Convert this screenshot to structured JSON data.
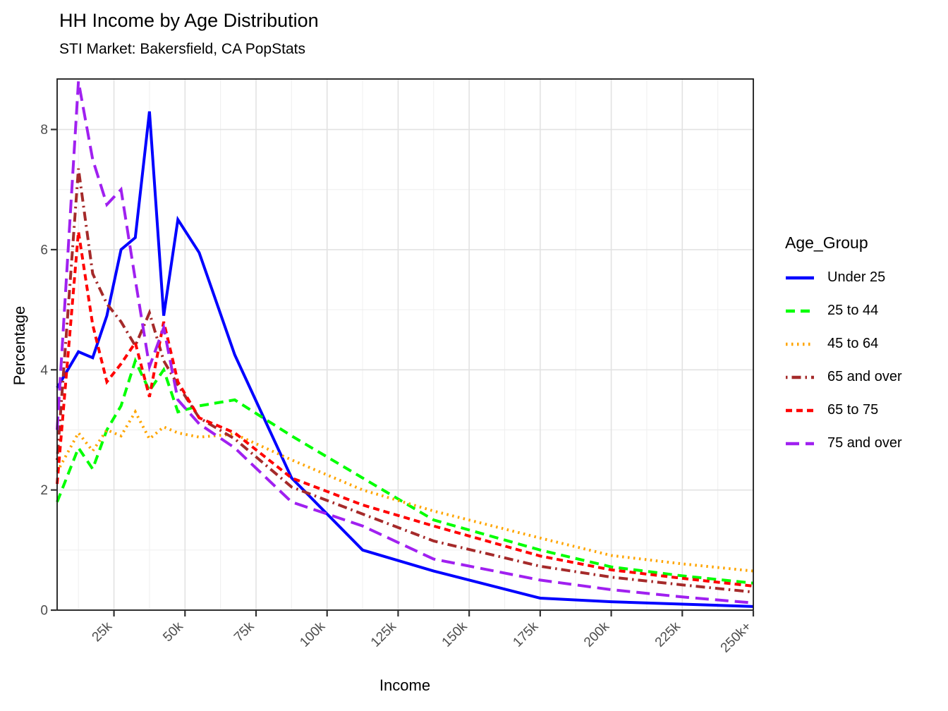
{
  "title": "HH Income by Age Distribution",
  "subtitle": "STI Market: Bakersfield, CA PopStats",
  "axes": {
    "x_label": "Income",
    "y_label": "Percentage",
    "x_tick_labels": [
      "25k",
      "50k",
      "75k",
      "100k",
      "125k",
      "150k",
      "175k",
      "200k",
      "225k",
      "250k+"
    ],
    "x_tick_values": [
      25,
      50,
      75,
      100,
      125,
      150,
      175,
      200,
      225,
      250
    ],
    "y_tick_labels": [
      "0",
      "2",
      "4",
      "6",
      "8"
    ],
    "y_tick_values": [
      0,
      2,
      4,
      6,
      8
    ]
  },
  "legend": {
    "title": "Age_Group",
    "position": "right"
  },
  "style": {
    "background": "#FFFFFF",
    "grid_major": "#E2E2E2",
    "grid_minor": "#F0F0F0",
    "panel_border": "#1A1A1A",
    "tick_mark_color": "#333333",
    "tick_label_color": "#4D4D4D",
    "text_color": "#000000"
  },
  "chart_data": {
    "type": "line",
    "title": "HH Income by Age Distribution",
    "subtitle": "STI Market: Bakersfield, CA PopStats",
    "xlabel": "Income",
    "ylabel": "Percentage",
    "x_unit": "household income, thousands of dollars (bracket midpoints)",
    "xlim": [
      5,
      250
    ],
    "ylim": [
      0,
      8.84
    ],
    "grid": true,
    "legend_position": "right",
    "x": [
      5,
      12.5,
      17.5,
      22.5,
      27.5,
      32.5,
      37.5,
      42.5,
      47.5,
      55,
      67.5,
      87.5,
      112.5,
      137.5,
      175,
      200,
      225,
      250
    ],
    "series": [
      {
        "name": "Under 25",
        "color": "#0000FF",
        "linetype": "solid",
        "values": [
          3.7,
          4.3,
          4.2,
          4.9,
          6.0,
          6.2,
          8.3,
          4.9,
          6.5,
          5.95,
          4.25,
          2.2,
          1.0,
          0.65,
          0.2,
          0.14,
          0.1,
          0.06
        ]
      },
      {
        "name": "25 to 44",
        "color": "#00FF00",
        "linetype": "dashed",
        "values": [
          1.8,
          2.7,
          2.35,
          3.0,
          3.4,
          4.15,
          3.65,
          4.0,
          3.3,
          3.4,
          3.5,
          2.9,
          2.2,
          1.5,
          1.0,
          0.72,
          0.57,
          0.45
        ]
      },
      {
        "name": "45 to 64",
        "color": "#FFA500",
        "linetype": "dotted",
        "values": [
          2.3,
          2.95,
          2.65,
          3.0,
          2.9,
          3.3,
          2.85,
          3.05,
          2.95,
          2.88,
          2.93,
          2.5,
          2.0,
          1.65,
          1.2,
          0.91,
          0.77,
          0.65
        ]
      },
      {
        "name": "65 and over",
        "color": "#A52A2A",
        "linetype": "dotdash",
        "values": [
          2.5,
          7.35,
          5.6,
          5.1,
          4.8,
          4.4,
          4.95,
          4.15,
          3.75,
          3.2,
          2.85,
          2.05,
          1.6,
          1.15,
          0.73,
          0.55,
          0.42,
          0.3
        ]
      },
      {
        "name": "65 to 75",
        "color": "#FF0000",
        "linetype": "shortdash",
        "values": [
          2.1,
          6.3,
          4.75,
          3.8,
          4.1,
          4.45,
          3.55,
          4.8,
          3.8,
          3.2,
          2.95,
          2.2,
          1.75,
          1.4,
          0.9,
          0.67,
          0.53,
          0.4
        ]
      },
      {
        "name": "75 and over",
        "color": "#A020F0",
        "linetype": "longdash",
        "values": [
          3.0,
          8.8,
          7.5,
          6.75,
          7.0,
          5.5,
          4.05,
          4.7,
          3.5,
          3.1,
          2.7,
          1.8,
          1.4,
          0.85,
          0.5,
          0.34,
          0.22,
          0.12
        ]
      }
    ]
  }
}
